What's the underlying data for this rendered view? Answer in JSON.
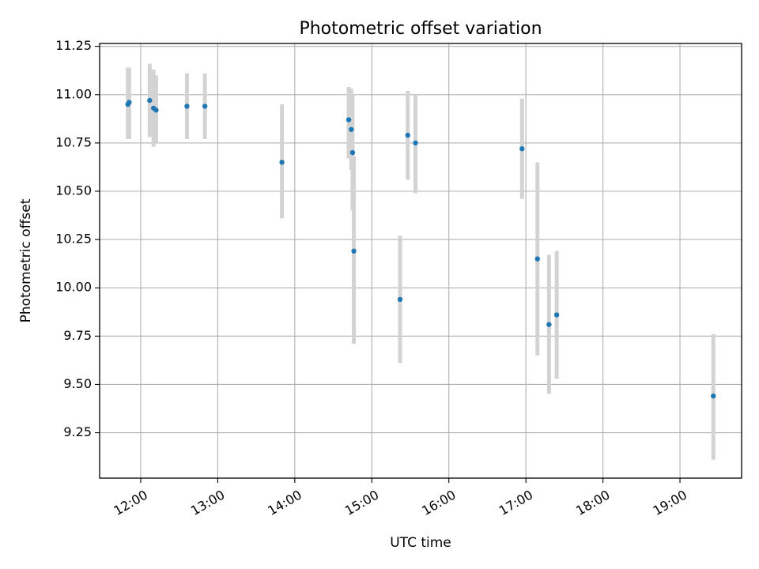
{
  "chart_data": {
    "type": "scatter",
    "title": "Photometric offset variation",
    "xlabel": "UTC time",
    "ylabel": "Photometric offset",
    "x_axis": {
      "kind": "time",
      "range": [
        "11:28",
        "19:48"
      ],
      "ticks": [
        "12:00",
        "13:00",
        "14:00",
        "15:00",
        "16:00",
        "17:00",
        "18:00",
        "19:00"
      ],
      "tick_label_rotation": "30deg"
    },
    "y_axis": {
      "range": [
        9.015,
        11.265
      ],
      "ticks": [
        9.25,
        9.5,
        9.75,
        10.0,
        10.25,
        10.5,
        10.75,
        11.0,
        11.25
      ],
      "tick_labels": [
        "9.25",
        "9.50",
        "9.75",
        "10.00",
        "10.25",
        "10.50",
        "10.75",
        "11.00",
        "11.25"
      ]
    },
    "grid": true,
    "legend": "none",
    "marker_color": "#1f77b4",
    "errorbar_color": "#d3d3d3",
    "points": [
      {
        "x": "11:50",
        "y": 10.95,
        "yerr_low": 10.77,
        "yerr_high": 11.14
      },
      {
        "x": "11:51",
        "y": 10.96,
        "yerr_low": 10.77,
        "yerr_high": 11.14
      },
      {
        "x": "12:07",
        "y": 10.97,
        "yerr_low": 10.78,
        "yerr_high": 11.16
      },
      {
        "x": "12:10",
        "y": 10.93,
        "yerr_low": 10.73,
        "yerr_high": 11.13
      },
      {
        "x": "12:12",
        "y": 10.92,
        "yerr_low": 10.75,
        "yerr_high": 11.1
      },
      {
        "x": "12:36",
        "y": 10.94,
        "yerr_low": 10.77,
        "yerr_high": 11.11
      },
      {
        "x": "12:50",
        "y": 10.94,
        "yerr_low": 10.77,
        "yerr_high": 11.11
      },
      {
        "x": "13:50",
        "y": 10.65,
        "yerr_low": 10.36,
        "yerr_high": 10.95
      },
      {
        "x": "14:42",
        "y": 10.87,
        "yerr_low": 10.67,
        "yerr_high": 11.04
      },
      {
        "x": "14:44",
        "y": 10.82,
        "yerr_low": 10.61,
        "yerr_high": 11.03
      },
      {
        "x": "14:45",
        "y": 10.7,
        "yerr_low": 10.4,
        "yerr_high": 11.0
      },
      {
        "x": "14:46",
        "y": 10.19,
        "yerr_low": 9.71,
        "yerr_high": 10.68
      },
      {
        "x": "15:22",
        "y": 9.94,
        "yerr_low": 9.61,
        "yerr_high": 10.27
      },
      {
        "x": "15:28",
        "y": 10.79,
        "yerr_low": 10.56,
        "yerr_high": 11.02
      },
      {
        "x": "15:34",
        "y": 10.75,
        "yerr_low": 10.49,
        "yerr_high": 11.0
      },
      {
        "x": "16:57",
        "y": 10.72,
        "yerr_low": 10.46,
        "yerr_high": 10.98
      },
      {
        "x": "17:09",
        "y": 10.15,
        "yerr_low": 9.65,
        "yerr_high": 10.65
      },
      {
        "x": "17:18",
        "y": 9.81,
        "yerr_low": 9.45,
        "yerr_high": 10.17
      },
      {
        "x": "17:24",
        "y": 9.86,
        "yerr_low": 9.53,
        "yerr_high": 10.19
      },
      {
        "x": "19:26",
        "y": 9.44,
        "yerr_low": 9.11,
        "yerr_high": 9.76
      }
    ]
  }
}
